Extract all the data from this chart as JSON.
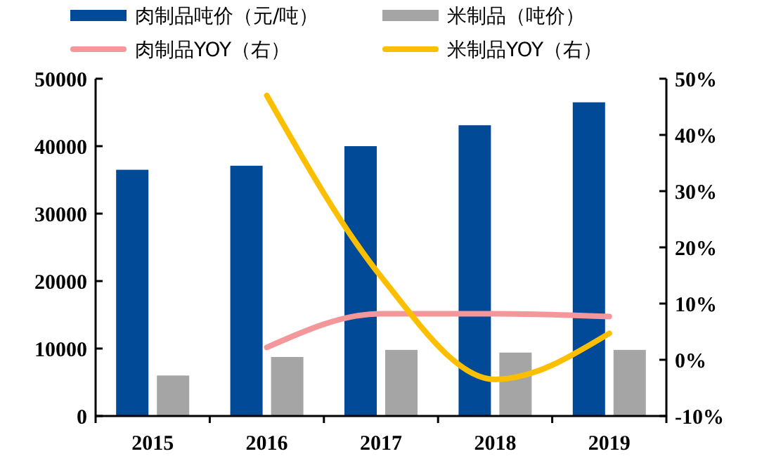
{
  "chart_data": {
    "type": "bar",
    "categories": [
      "2015",
      "2016",
      "2017",
      "2018",
      "2019"
    ],
    "series": [
      {
        "name": "肉制品吨价（元/吨）",
        "color": "#004a97",
        "values": [
          36500,
          37100,
          40000,
          43100,
          46500
        ]
      },
      {
        "name": "米制品（吨价）",
        "color": "#a5a5a5",
        "values": [
          6000,
          8750,
          9800,
          9400,
          9800
        ]
      },
      {
        "name": "肉制品YOY（右）",
        "type": "line",
        "axis": "y2",
        "color": "#f4979b",
        "values": [
          null,
          2.2,
          8.2,
          8.2,
          7.7
        ]
      },
      {
        "name": "米制品YOY（右）",
        "type": "line",
        "axis": "y2",
        "color": "#fcbf00",
        "values": [
          null,
          47,
          14.8,
          -3.5,
          4.7
        ]
      }
    ],
    "ylim": [
      0,
      50000
    ],
    "yticks": [
      0,
      10000,
      20000,
      30000,
      40000,
      50000
    ],
    "y2lim": [
      -10,
      50
    ],
    "y2ticks": [
      {
        "value": -10,
        "label": "-10%"
      },
      {
        "value": 0,
        "label": "0%"
      },
      {
        "value": 10,
        "label": "10%"
      },
      {
        "value": 20,
        "label": "20%"
      },
      {
        "value": 30,
        "label": "30%"
      },
      {
        "value": 40,
        "label": "40%"
      },
      {
        "value": 50,
        "label": "50%"
      }
    ],
    "grid": false,
    "legend": "top"
  }
}
